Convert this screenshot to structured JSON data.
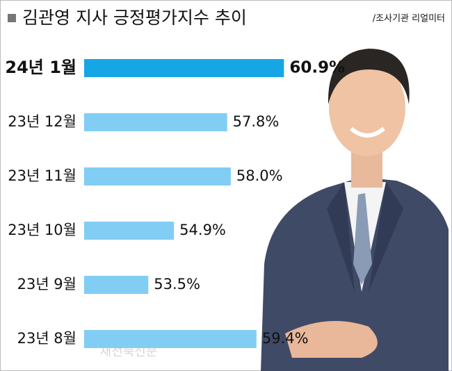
{
  "chart_data": {
    "type": "bar",
    "orientation": "horizontal",
    "title": "김관영 지사 긍정평가지수 추이",
    "source": "/조사기관 리얼미터",
    "watermark": "새전북신문",
    "categories": [
      "24년 1월",
      "23년 12월",
      "23년 11월",
      "23년 10월",
      "23년 9월",
      "23년 8월"
    ],
    "values": [
      60.9,
      57.8,
      58.0,
      54.9,
      53.5,
      59.4
    ],
    "value_labels": [
      "60.9%",
      "57.8%",
      "58.0%",
      "54.9%",
      "53.5%",
      "59.4%"
    ],
    "colors": [
      "#16a6e6",
      "#82cdf3",
      "#82cdf3",
      "#82cdf3",
      "#82cdf3",
      "#82cdf3"
    ],
    "xlim": [
      50,
      61
    ]
  }
}
